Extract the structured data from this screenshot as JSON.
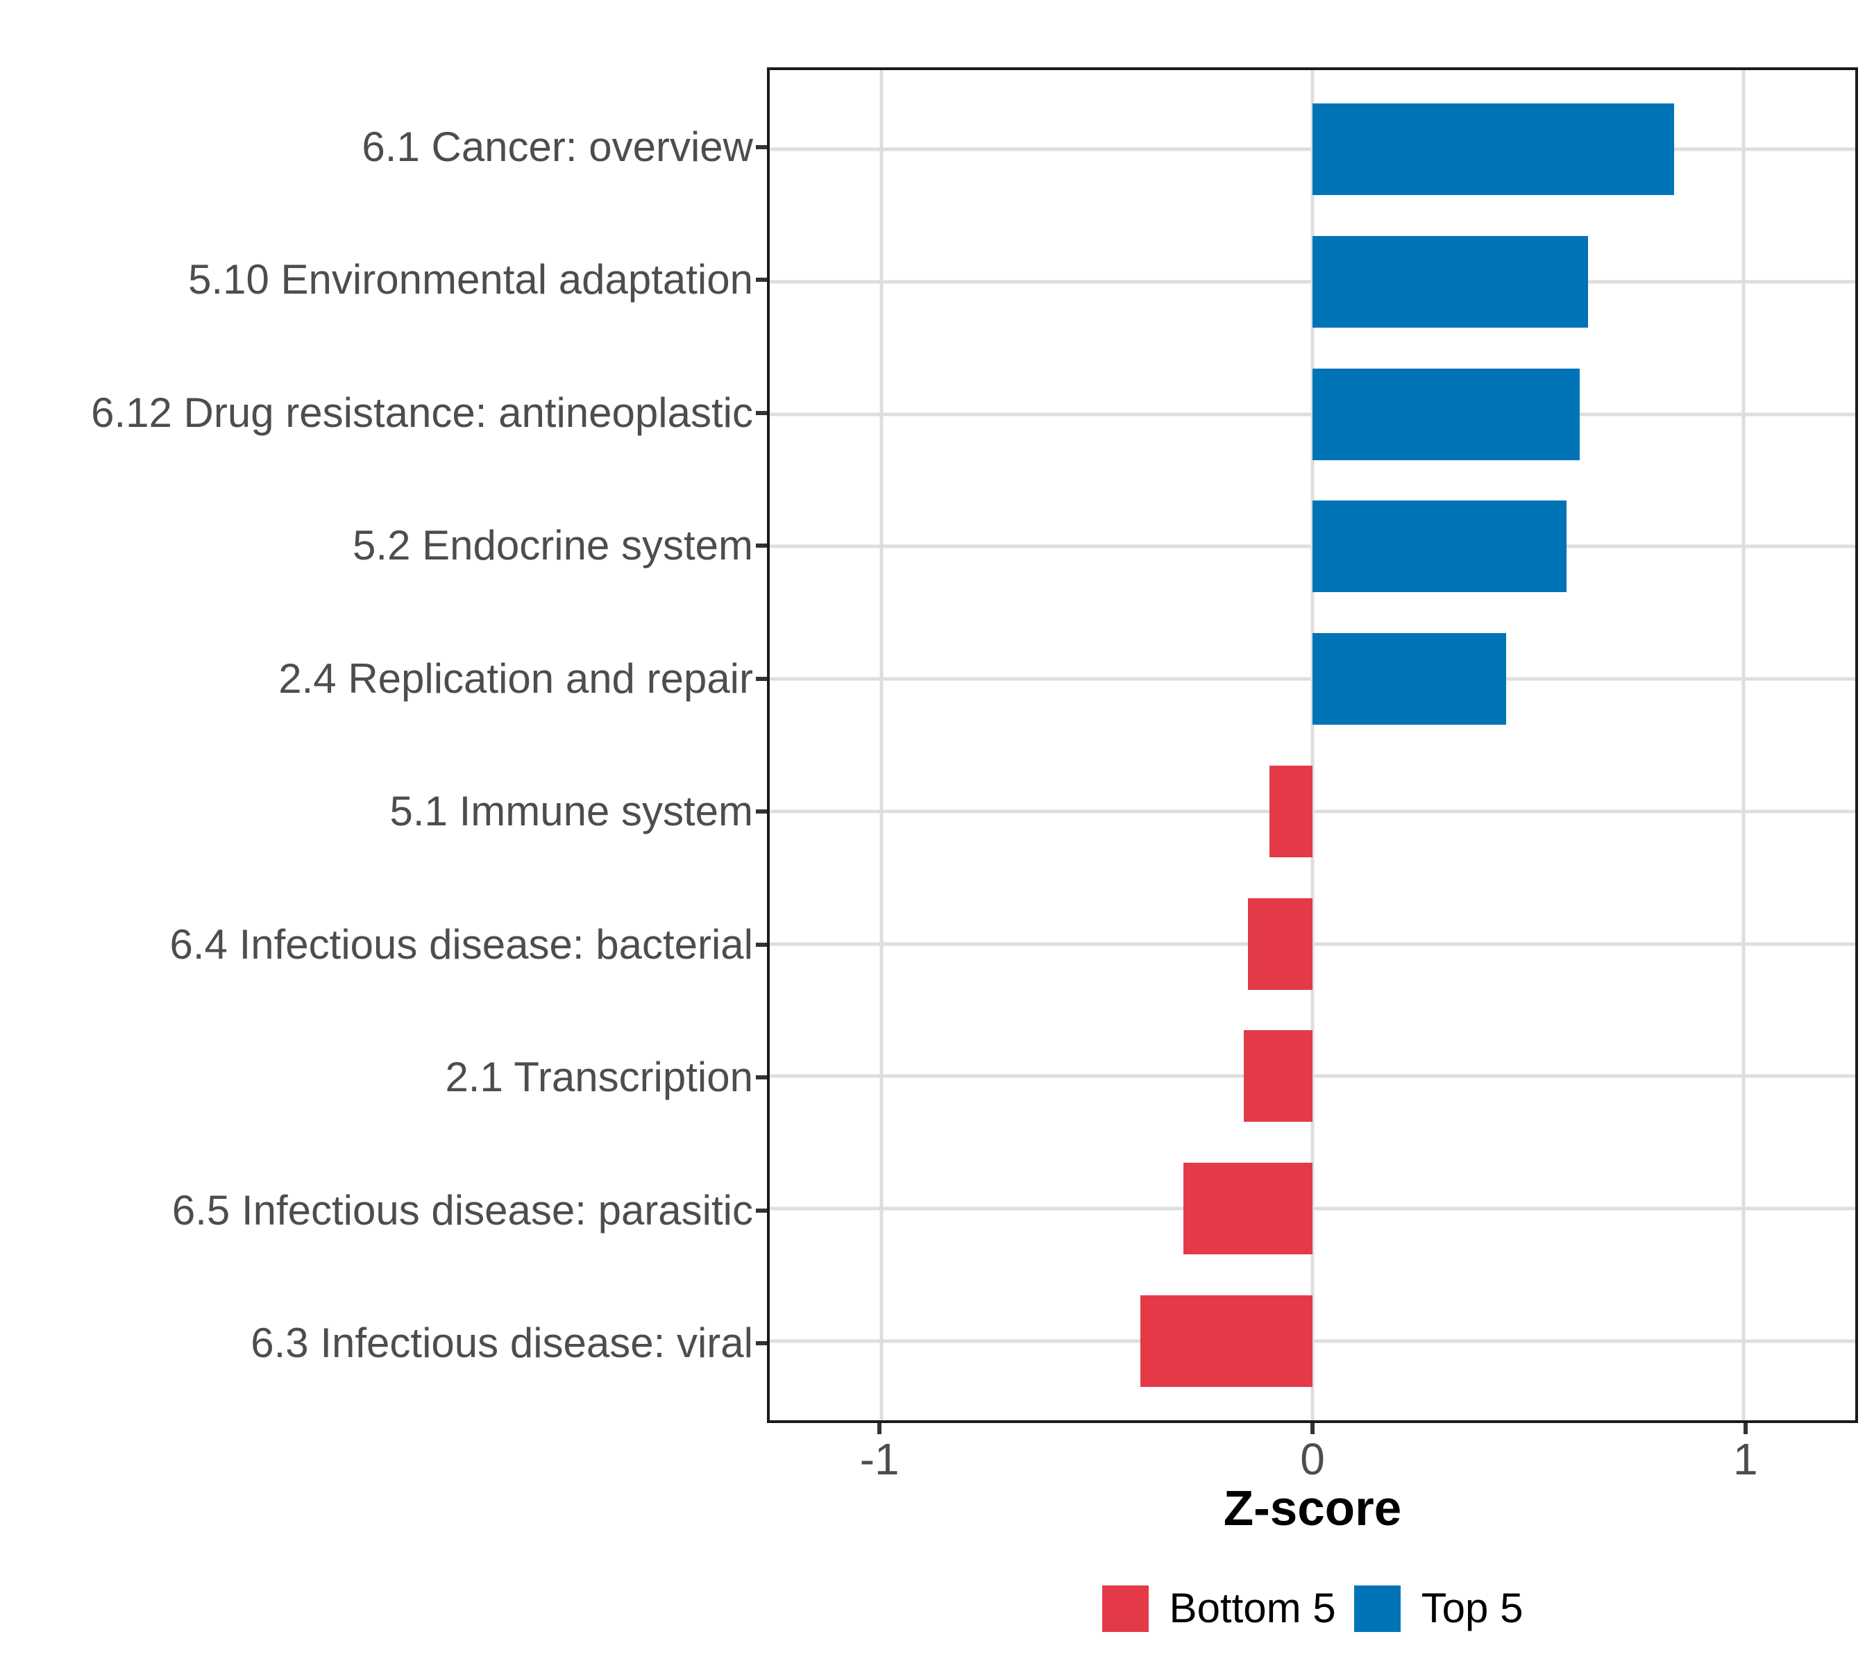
{
  "chart_data": {
    "type": "bar",
    "orientation": "horizontal",
    "title": "",
    "xlabel": "Z-score",
    "ylabel": "",
    "xlim": [
      -1.26,
      1.26
    ],
    "x_ticks": [
      -1,
      0,
      1
    ],
    "x_tick_labels": [
      "-1",
      "0",
      "1"
    ],
    "grid": "major-gridlines-on-white-panel",
    "legend_position": "bottom-center",
    "categories": [
      "6.1 Cancer: overview",
      "5.10 Environmental adaptation",
      "6.12 Drug resistance: antineoplastic",
      "5.2 Endocrine system",
      "2.4 Replication and repair",
      "5.1 Immune system",
      "6.4 Infectious disease: bacterial",
      "2.1 Transcription",
      "6.5 Infectious disease: parasitic",
      "6.3 Infectious disease: viral"
    ],
    "values": [
      0.84,
      0.64,
      0.62,
      0.59,
      0.45,
      -0.1,
      -0.15,
      -0.16,
      -0.3,
      -0.4
    ],
    "groups": [
      "Top 5",
      "Top 5",
      "Top 5",
      "Top 5",
      "Top 5",
      "Bottom 5",
      "Bottom 5",
      "Bottom 5",
      "Bottom 5",
      "Bottom 5"
    ],
    "colors": {
      "Top 5": "#0074B7",
      "Bottom 5": "#E43A48"
    },
    "legend": [
      {
        "label": "Bottom 5",
        "color": "#E43A48"
      },
      {
        "label": "Top 5",
        "color": "#0074B7"
      }
    ],
    "style": {
      "gridline_color": "#dedede",
      "panel_border_color": "#1a1a1a",
      "axis_text_color": "#4d4d4d",
      "axis_title_color": "#000000"
    }
  }
}
